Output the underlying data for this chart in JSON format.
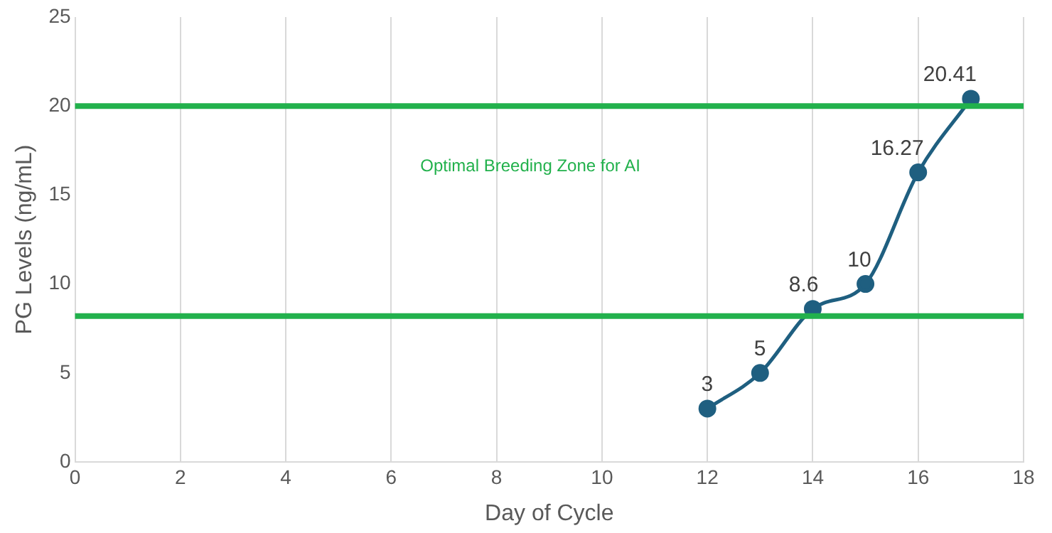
{
  "chart_data": {
    "type": "line",
    "xlabel": "Day of Cycle",
    "ylabel": "PG Levels (ng/mL)",
    "x": [
      12,
      13,
      14,
      15,
      16,
      17
    ],
    "series": [
      {
        "color": "#1f5f80",
        "values": [
          3,
          5,
          8.6,
          10,
          16.27,
          20.41
        ]
      }
    ],
    "xlim": [
      0,
      18
    ],
    "xticks": [
      0,
      2,
      4,
      6,
      8,
      10,
      12,
      14,
      16,
      18
    ],
    "ylim": [
      0,
      25
    ],
    "yticks": [
      0,
      5,
      10,
      15,
      20,
      25
    ],
    "grid": "x",
    "legend": false,
    "marker": "circle",
    "line_style": "solid",
    "data_labels": true,
    "ref_lines": [
      {
        "axis": "y",
        "value": 20,
        "color": "#22b14c"
      },
      {
        "axis": "y",
        "value": 8.2,
        "color": "#22b14c"
      }
    ],
    "annotations": [
      "Optimal Breeding Zone for AI"
    ]
  }
}
